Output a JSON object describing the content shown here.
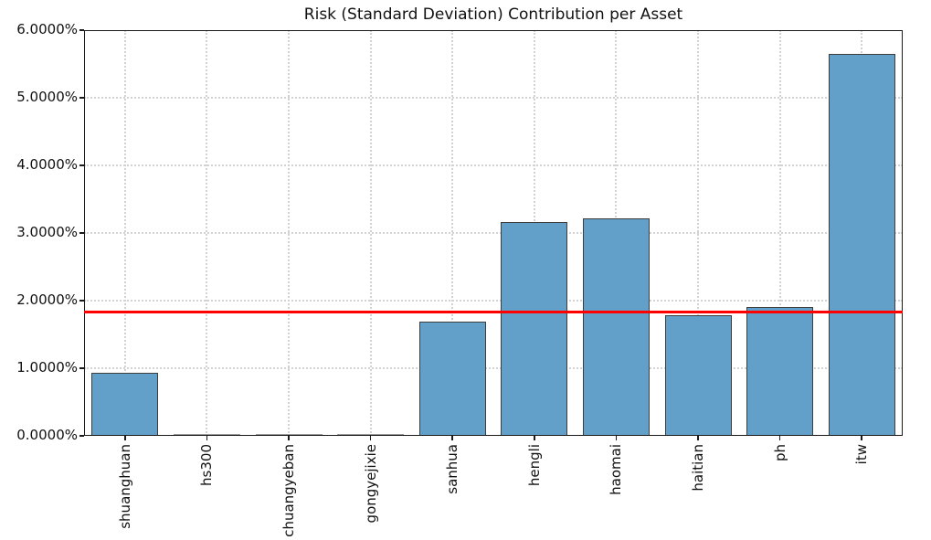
{
  "chart_data": {
    "type": "bar",
    "title": "Risk (Standard Deviation) Contribution per Asset",
    "xlabel": "",
    "ylabel": "",
    "categories": [
      "shuanghuan",
      "hs300",
      "chuangyeban",
      "gongyejixie",
      "sanhua",
      "hengli",
      "haomai",
      "haitian",
      "ph",
      "itw"
    ],
    "values": [
      0.93,
      0.0,
      0.0,
      0.0,
      1.69,
      3.16,
      3.22,
      1.78,
      1.91,
      5.65
    ],
    "unit": "%",
    "ylim": [
      0,
      6
    ],
    "yticks": [
      0,
      1,
      2,
      3,
      4,
      5,
      6
    ],
    "ytick_labels": [
      "0.0000%",
      "1.0000%",
      "2.0000%",
      "3.0000%",
      "4.0000%",
      "5.0000%",
      "6.0000%"
    ],
    "reference_line": {
      "value": 1.83,
      "color": "#ff0000"
    },
    "grid": "dotted-both",
    "legend_position": "none",
    "bar_color": "#62a0ca",
    "bar_edge_color": "#3d3d3d",
    "axis_color": "#1a1a1a",
    "grid_color": "#d2d2d2",
    "background_color": "#ffffff"
  }
}
